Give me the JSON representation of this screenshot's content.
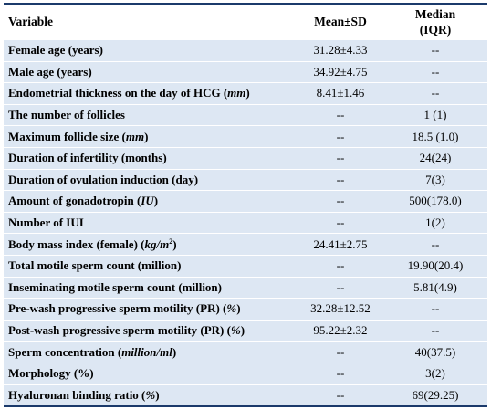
{
  "table": {
    "headers": {
      "variable": "Variable",
      "mean_sd": "Mean±SD",
      "median_line1": "Median",
      "median_line2": "(IQR)"
    },
    "rows": [
      {
        "variable": "Female age (years)",
        "mean_sd": "31.28±4.33",
        "median": "--"
      },
      {
        "variable": "Male age (years)",
        "mean_sd": "34.92±4.75",
        "median": "--"
      },
      {
        "variable_prefix": "Endometrial thickness on the day of HCG (",
        "variable_unit": "mm",
        "variable_suffix": ")",
        "mean_sd": "8.41±1.46",
        "median": "--"
      },
      {
        "variable": "The number of follicles",
        "mean_sd": "--",
        "median": "1 (1)"
      },
      {
        "variable_prefix": "Maximum follicle size (",
        "variable_unit": "mm",
        "variable_suffix": ")",
        "mean_sd": "--",
        "median": "18.5 (1.0)"
      },
      {
        "variable": "Duration of infertility (months)",
        "mean_sd": "--",
        "median": "24(24)"
      },
      {
        "variable": "Duration of ovulation induction  (day)",
        "mean_sd": "--",
        "median": "7(3)"
      },
      {
        "variable_prefix": "Amount of gonadotropin (",
        "variable_unit": "IU",
        "variable_suffix": ")",
        "mean_sd": "--",
        "median": "500(178.0)"
      },
      {
        "variable": "Number of IUI",
        "mean_sd": "--",
        "median": "1(2)"
      },
      {
        "variable_prefix": "Body mass index (female) (",
        "variable_unit": "kg/m",
        "variable_sup": "2",
        "variable_suffix": ")",
        "mean_sd": "24.41±2.75",
        "median": "--"
      },
      {
        "variable": "Total motile sperm count (million)",
        "mean_sd": "--",
        "median": "19.90(20.4)"
      },
      {
        "variable": "Inseminating motile sperm count (million)",
        "mean_sd": "--",
        "median": "5.81(4.9)"
      },
      {
        "variable_prefix": "Pre-wash progressive sperm motility (PR) (",
        "variable_unit": "%",
        "variable_suffix": ")",
        "mean_sd": "32.28±12.52",
        "median": "--"
      },
      {
        "variable_prefix": "Post-wash progressive sperm motility (PR) (",
        "variable_unit": "%",
        "variable_suffix": ")",
        "mean_sd": "95.22±2.32",
        "median": "--"
      },
      {
        "variable_prefix": "Sperm concentration (",
        "variable_unit": "million/ml",
        "variable_suffix": ")",
        "mean_sd": "--",
        "median": "40(37.5)"
      },
      {
        "variable": "Morphology (%)",
        "mean_sd": "--",
        "median": "3(2)"
      },
      {
        "variable_prefix": "Hyaluronan binding ratio (",
        "variable_unit": "%",
        "variable_suffix": ")",
        "mean_sd": "--",
        "median": "69(29.25)"
      }
    ]
  },
  "colors": {
    "row_shade": "#dde7f3",
    "rule": "#1b3a6b"
  }
}
